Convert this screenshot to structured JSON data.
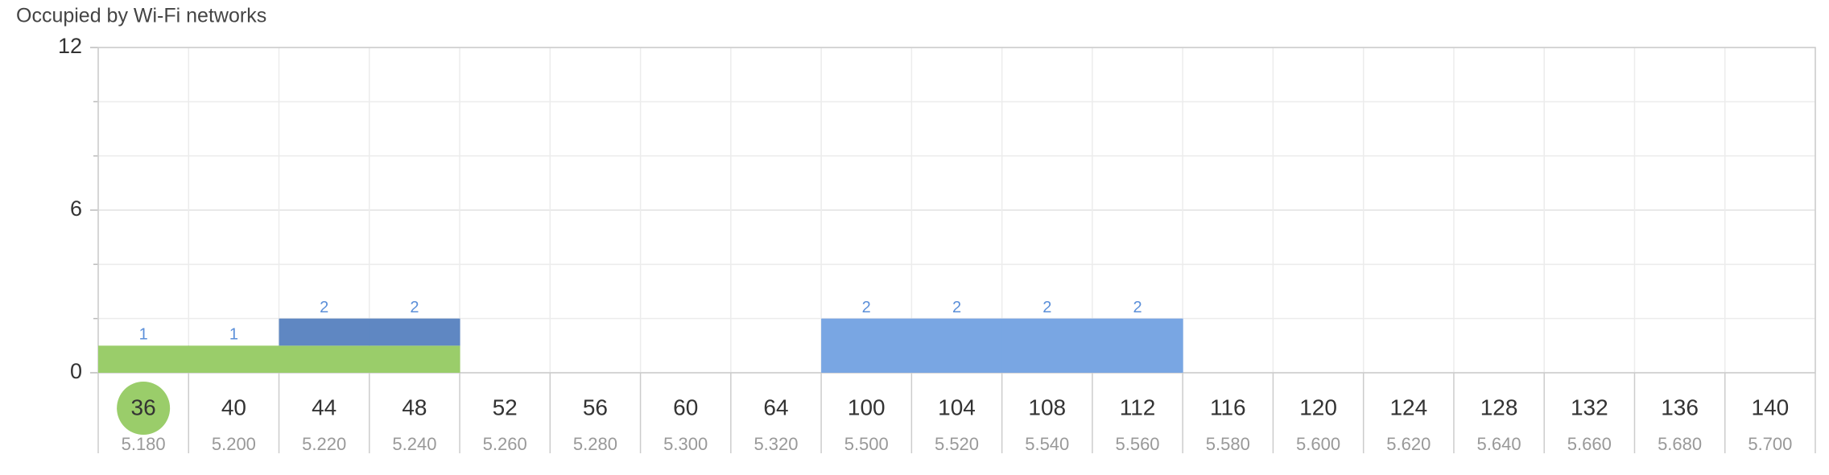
{
  "chart_data": {
    "type": "stacked-bar",
    "title": "Occupied by Wi-Fi networks",
    "categories": [
      "36",
      "40",
      "44",
      "48",
      "52",
      "56",
      "60",
      "64",
      "100",
      "104",
      "108",
      "112",
      "116",
      "120",
      "124",
      "128",
      "132",
      "136",
      "140"
    ],
    "frequencies": [
      "5.180",
      "5.200",
      "5.220",
      "5.240",
      "5.260",
      "5.280",
      "5.300",
      "5.320",
      "5.500",
      "5.520",
      "5.540",
      "5.560",
      "5.580",
      "5.600",
      "5.620",
      "5.640",
      "5.660",
      "5.680",
      "5.700"
    ],
    "series": [
      {
        "color": "#9acd6a",
        "values": [
          1,
          1,
          1,
          1,
          0,
          0,
          0,
          0,
          0,
          0,
          0,
          0,
          0,
          0,
          0,
          0,
          0,
          0,
          0
        ]
      },
      {
        "color": "#5f87c2",
        "values": [
          0,
          0,
          1,
          1,
          0,
          0,
          0,
          0,
          0,
          0,
          0,
          0,
          0,
          0,
          0,
          0,
          0,
          0,
          0
        ]
      },
      {
        "color": "#79a6e3",
        "values": [
          0,
          0,
          0,
          0,
          0,
          0,
          0,
          0,
          2,
          2,
          2,
          2,
          0,
          0,
          0,
          0,
          0,
          0,
          0
        ]
      }
    ],
    "totals": [
      1,
      1,
      2,
      2,
      null,
      null,
      null,
      null,
      2,
      2,
      2,
      2,
      null,
      null,
      null,
      null,
      null,
      null,
      null
    ],
    "selected": "36",
    "selected_color": "#9acd6a",
    "ylim": [
      0,
      12
    ],
    "yticks": [
      0,
      6,
      12
    ],
    "minor_yticks": [
      2,
      4,
      8,
      10
    ],
    "grid": true
  }
}
